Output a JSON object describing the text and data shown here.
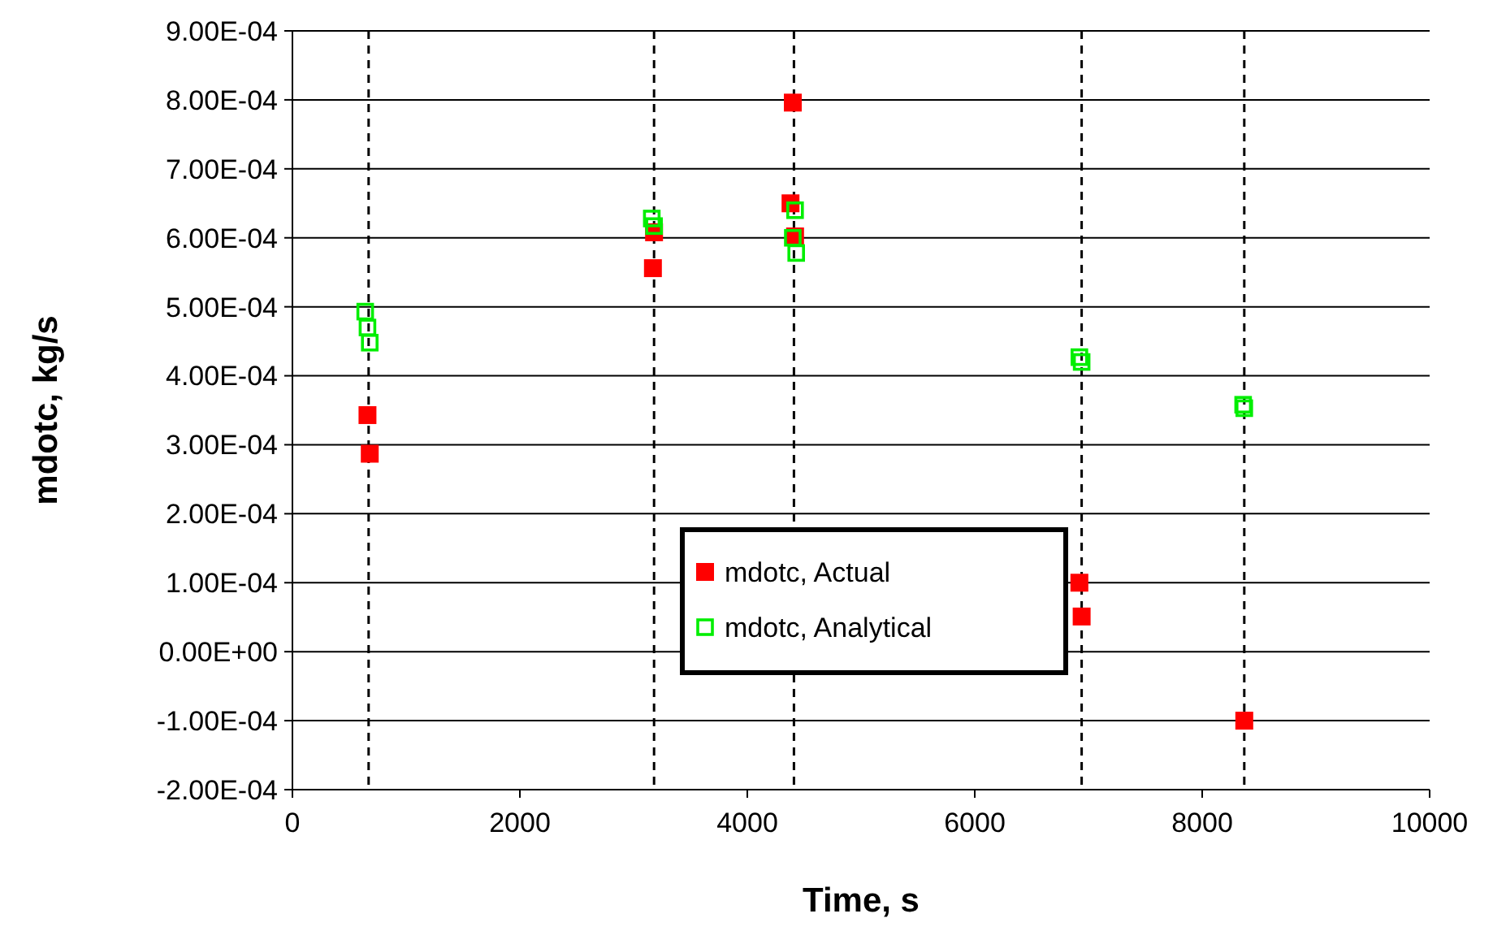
{
  "chart_data": {
    "type": "scatter",
    "xlabel": "Time, s",
    "ylabel": "mdotc, kg/s",
    "xlim": [
      0,
      10000
    ],
    "xticks": [
      0,
      2000,
      4000,
      6000,
      8000,
      10000
    ],
    "ylim": [
      -0.0002,
      0.0009
    ],
    "yticks": [
      {
        "value": -0.0002,
        "label": "-2.00E-04"
      },
      {
        "value": -0.0001,
        "label": "-1.00E-04"
      },
      {
        "value": 0,
        "label": "0.00E+00"
      },
      {
        "value": 0.0001,
        "label": "1.00E-04"
      },
      {
        "value": 0.0002,
        "label": "2.00E-04"
      },
      {
        "value": 0.0003,
        "label": "3.00E-04"
      },
      {
        "value": 0.0004,
        "label": "4.00E-04"
      },
      {
        "value": 0.0005,
        "label": "5.00E-04"
      },
      {
        "value": 0.0006,
        "label": "6.00E-04"
      },
      {
        "value": 0.0007,
        "label": "7.00E-04"
      },
      {
        "value": 0.0008,
        "label": "8.00E-04"
      },
      {
        "value": 0.0009,
        "label": "9.00E-04"
      }
    ],
    "grid": "y",
    "legend": "center",
    "marker": "square",
    "ref_lines": [
      {
        "axis": "x",
        "value": 670,
        "line_style": "dashed",
        "color": "#000000"
      },
      {
        "axis": "x",
        "value": 3180,
        "line_style": "dashed",
        "color": "#000000"
      },
      {
        "axis": "x",
        "value": 4410,
        "line_style": "dashed",
        "color": "#000000"
      },
      {
        "axis": "x",
        "value": 6940,
        "line_style": "dashed",
        "color": "#000000"
      },
      {
        "axis": "x",
        "value": 8370,
        "line_style": "dashed",
        "color": "#000000"
      }
    ],
    "series": [
      {
        "name": "mdotc, Actual",
        "color": "#ff0000",
        "x": [
          660,
          680,
          3180,
          3170,
          4400,
          4380,
          4420,
          6920,
          6940,
          8370
        ],
        "values": [
          0.000343,
          0.000287,
          0.000608,
          0.000556,
          0.000796,
          0.00065,
          0.000602,
          0.0001,
          5.1e-05,
          -0.0001
        ]
      },
      {
        "name": "mdotc, Analytical",
        "color": "#00ee00",
        "x": [
          640,
          660,
          680,
          3160,
          3180,
          4420,
          4400,
          4430,
          6920,
          6940,
          8360,
          8370
        ],
        "values": [
          0.000493,
          0.00047,
          0.000448,
          0.000628,
          0.000617,
          0.00064,
          0.0006,
          0.000578,
          0.000427,
          0.00042,
          0.000358,
          0.000353
        ]
      }
    ]
  }
}
